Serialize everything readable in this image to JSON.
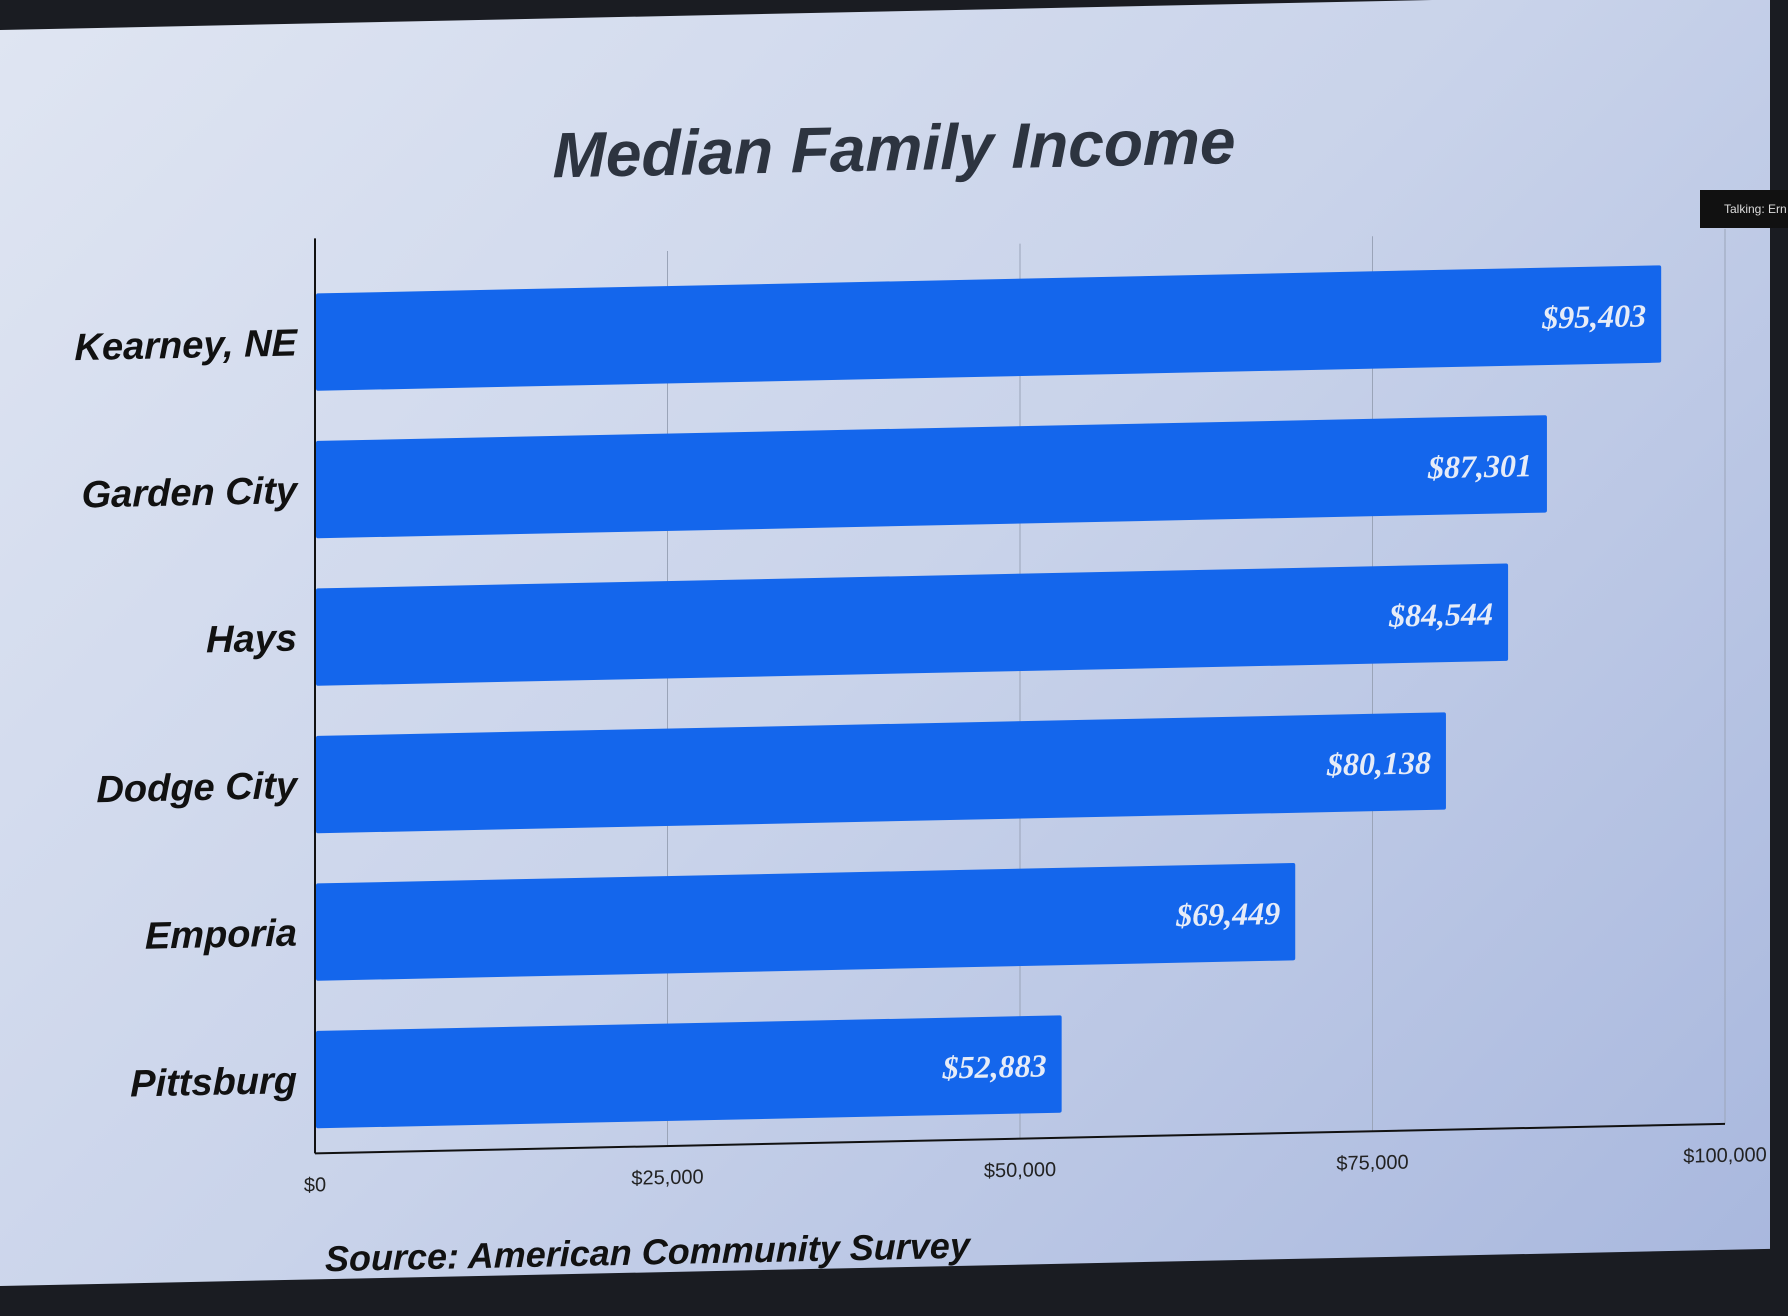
{
  "chart_data": {
    "type": "bar",
    "orientation": "horizontal",
    "title": "Median Family Income",
    "categories": [
      "Kearney, NE",
      "Garden City",
      "Hays",
      "Dodge City",
      "Emporia",
      "Pittsburg"
    ],
    "values": [
      95403,
      87301,
      84544,
      80138,
      69449,
      52883
    ],
    "data_labels": [
      "$95,403",
      "$87,301",
      "$84,544",
      "$80,138",
      "$69,449",
      "$52,883"
    ],
    "xlim": [
      0,
      100000
    ],
    "x_ticks": [
      0,
      25000,
      50000,
      75000,
      100000
    ],
    "x_tick_labels": [
      "$0",
      "$25,000",
      "$50,000",
      "$75,000",
      "$100,000"
    ],
    "grid": true,
    "bar_color": "#1466ec",
    "source": "Source: American Community Survey"
  },
  "overlay": {
    "talking": "Talking: Ern"
  }
}
